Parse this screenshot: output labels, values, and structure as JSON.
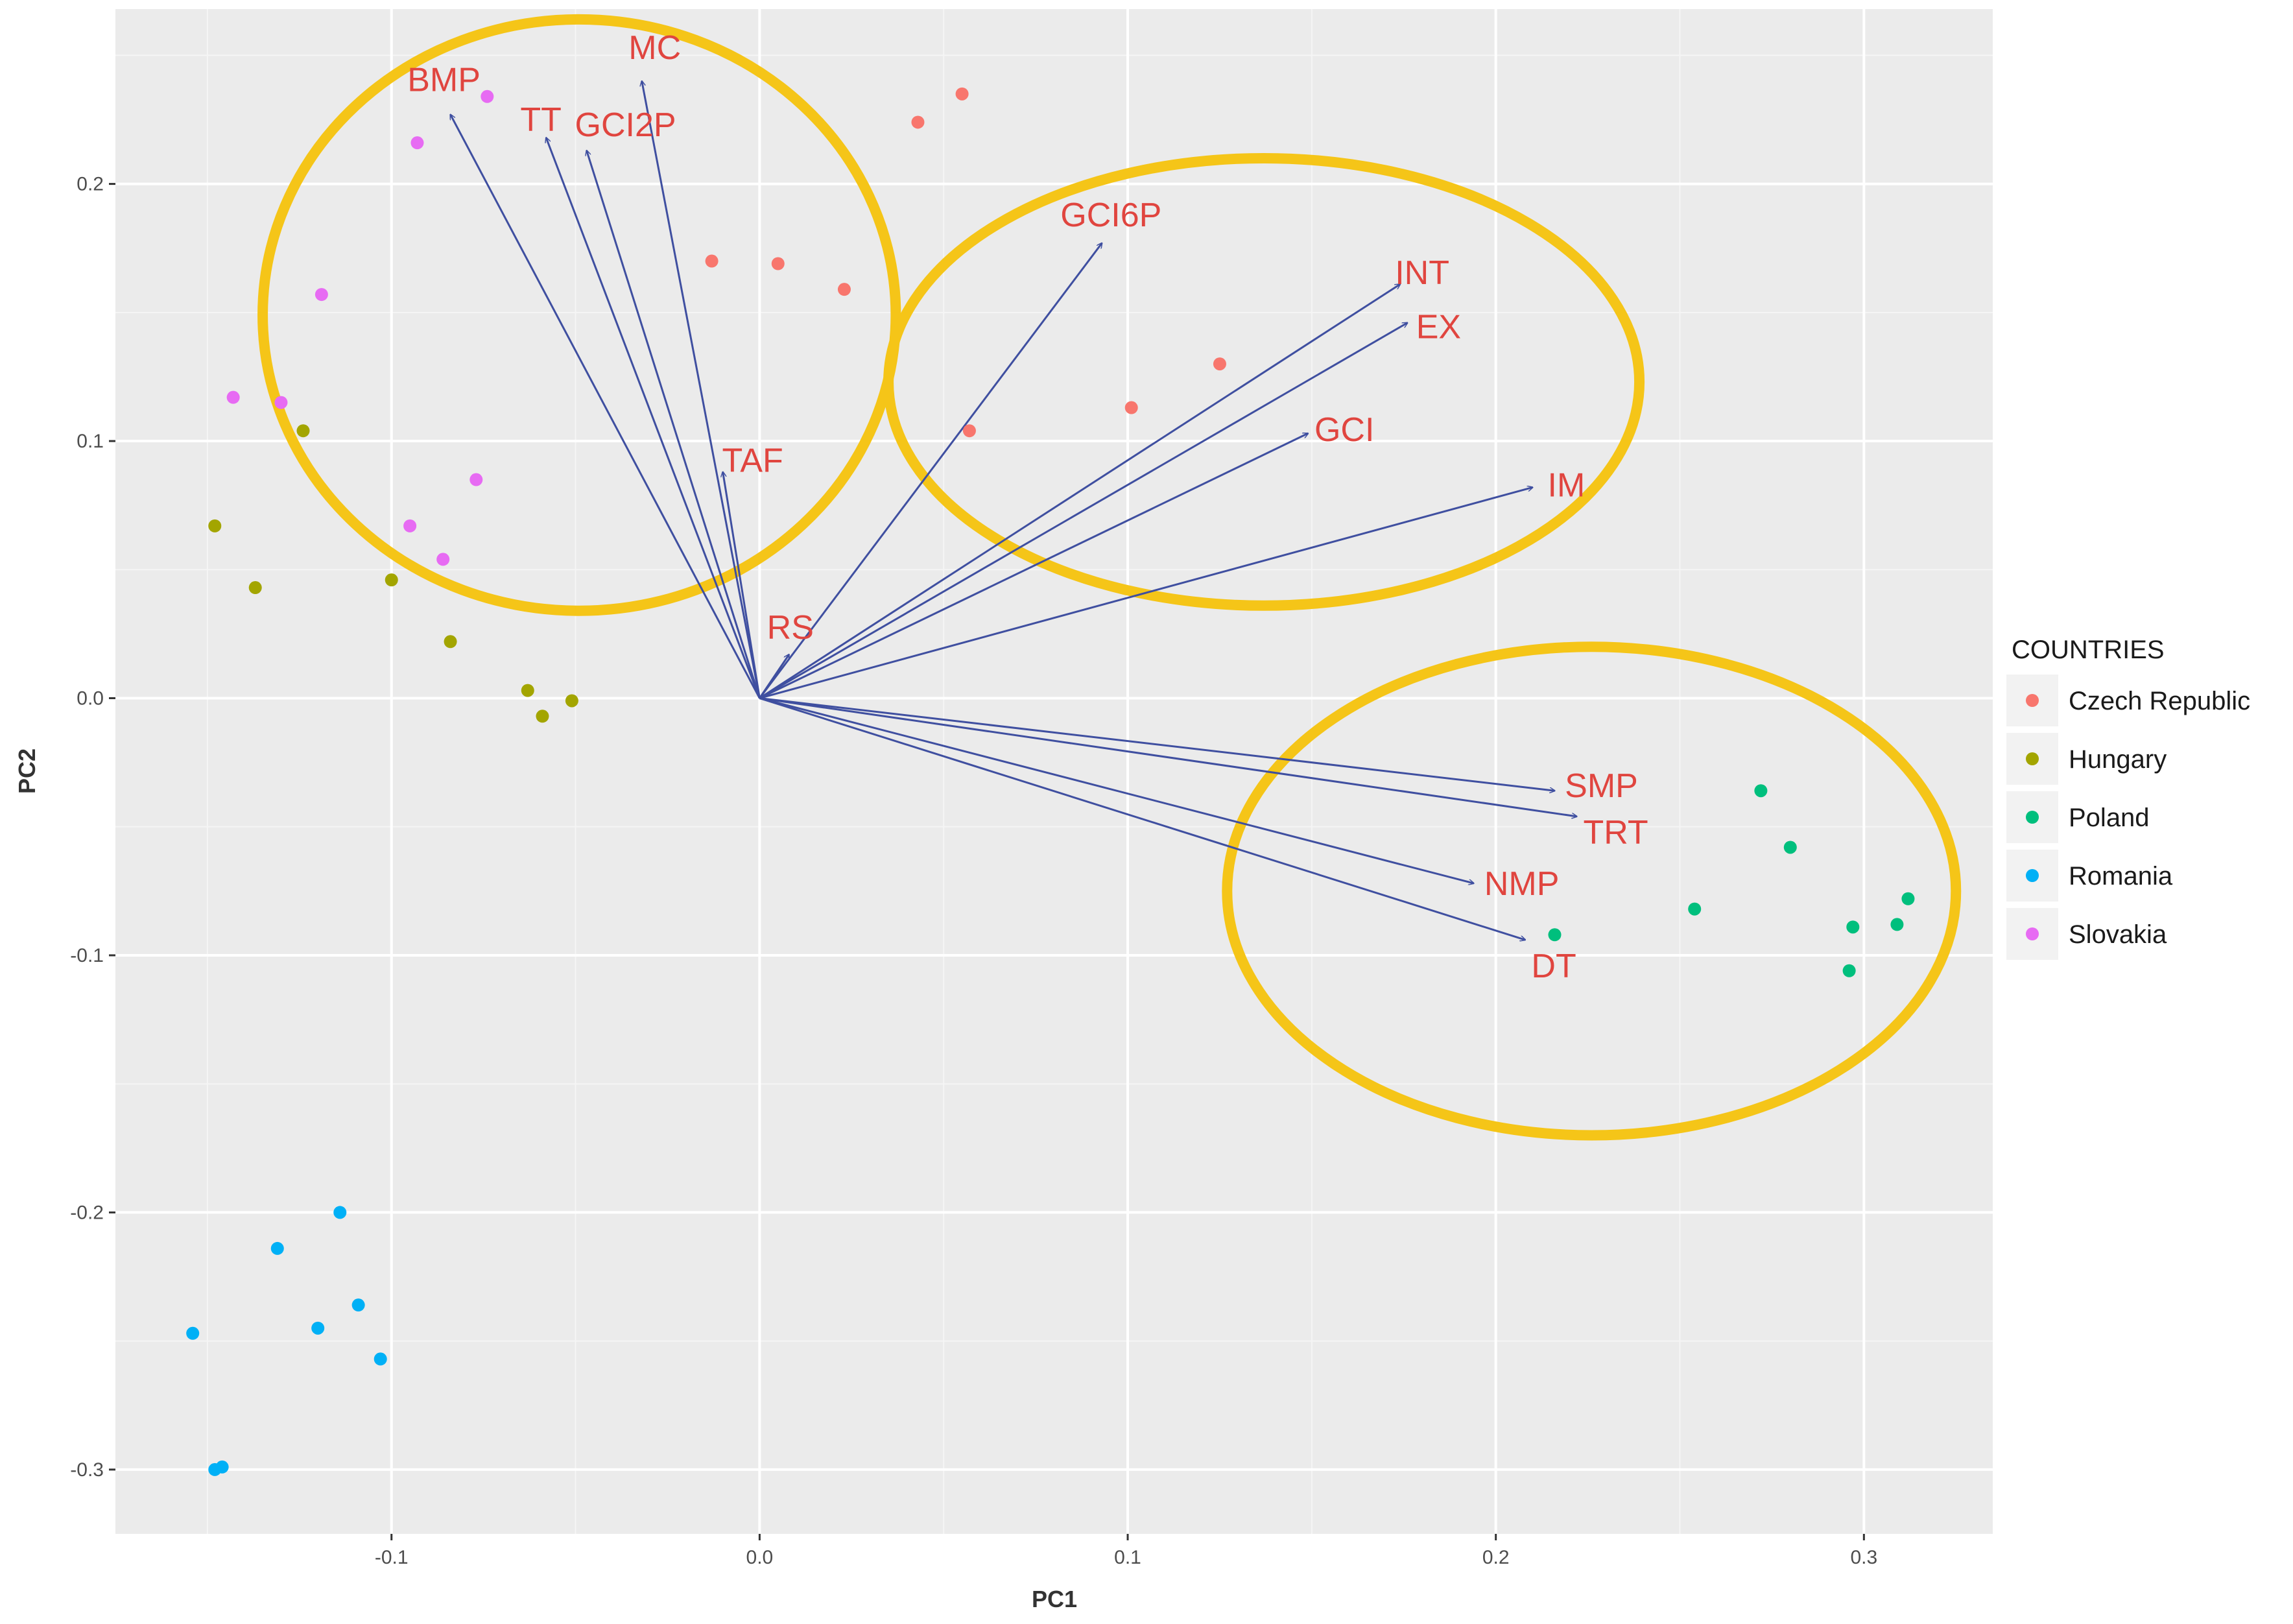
{
  "chart_data": {
    "type": "scatter",
    "title": "",
    "xlabel": "PC1",
    "ylabel": "PC2",
    "xlim": [
      -0.175,
      0.335
    ],
    "ylim": [
      -0.325,
      0.268
    ],
    "x_ticks": [
      -0.1,
      0.0,
      0.1,
      0.2,
      0.3
    ],
    "x_tick_labels": [
      "-0.1",
      "0.0",
      "0.1",
      "0.2",
      "0.3"
    ],
    "y_ticks": [
      -0.3,
      -0.2,
      -0.1,
      0.0,
      0.1,
      0.2
    ],
    "y_tick_labels": [
      "-0.3",
      "-0.2",
      "-0.1",
      "0.0",
      "0.1",
      "0.2"
    ],
    "grid": true,
    "legend": {
      "title": "COUNTRIES",
      "placement": "right"
    },
    "series": [
      {
        "name": "Czech Republic",
        "color": "#f8766d",
        "points": [
          [
            0.043,
            0.224
          ],
          [
            0.055,
            0.235
          ],
          [
            -0.013,
            0.17
          ],
          [
            0.005,
            0.169
          ],
          [
            0.023,
            0.159
          ],
          [
            0.125,
            0.13
          ],
          [
            0.101,
            0.113
          ],
          [
            0.057,
            0.104
          ]
        ]
      },
      {
        "name": "Hungary",
        "color": "#a3a500",
        "points": [
          [
            -0.148,
            0.067
          ],
          [
            -0.124,
            0.104
          ],
          [
            -0.137,
            0.043
          ],
          [
            -0.1,
            0.046
          ],
          [
            -0.084,
            0.022
          ],
          [
            -0.063,
            0.003
          ],
          [
            -0.059,
            -0.007
          ],
          [
            -0.051,
            -0.001
          ]
        ]
      },
      {
        "name": "Poland",
        "color": "#00bf7d",
        "points": [
          [
            0.272,
            -0.036
          ],
          [
            0.28,
            -0.058
          ],
          [
            0.254,
            -0.082
          ],
          [
            0.216,
            -0.092
          ],
          [
            0.297,
            -0.089
          ],
          [
            0.309,
            -0.088
          ],
          [
            0.312,
            -0.078
          ],
          [
            0.296,
            -0.106
          ]
        ]
      },
      {
        "name": "Romania",
        "color": "#00b0f6",
        "points": [
          [
            -0.114,
            -0.2
          ],
          [
            -0.131,
            -0.214
          ],
          [
            -0.109,
            -0.236
          ],
          [
            -0.12,
            -0.245
          ],
          [
            -0.103,
            -0.257
          ],
          [
            -0.154,
            -0.247
          ],
          [
            -0.148,
            -0.3
          ],
          [
            -0.146,
            -0.299
          ]
        ]
      },
      {
        "name": "Slovakia",
        "color": "#e76bf3",
        "points": [
          [
            -0.074,
            0.234
          ],
          [
            -0.093,
            0.216
          ],
          [
            -0.119,
            0.157
          ],
          [
            -0.143,
            0.117
          ],
          [
            -0.13,
            0.115
          ],
          [
            -0.077,
            0.085
          ],
          [
            -0.095,
            0.067
          ],
          [
            -0.086,
            0.054
          ]
        ]
      }
    ],
    "loadings": [
      {
        "label": "BMP",
        "x": -0.084,
        "y": 0.227
      },
      {
        "label": "TT",
        "x": -0.058,
        "y": 0.218
      },
      {
        "label": "GCI2P",
        "x": -0.047,
        "y": 0.213
      },
      {
        "label": "MC",
        "x": -0.032,
        "y": 0.24
      },
      {
        "label": "TAF",
        "x": -0.01,
        "y": 0.088
      },
      {
        "label": "RS",
        "x": 0.008,
        "y": 0.017
      },
      {
        "label": "GCI6P",
        "x": 0.093,
        "y": 0.177
      },
      {
        "label": "INT",
        "x": 0.174,
        "y": 0.161
      },
      {
        "label": "EX",
        "x": 0.176,
        "y": 0.146
      },
      {
        "label": "GCI",
        "x": 0.149,
        "y": 0.103
      },
      {
        "label": "IM",
        "x": 0.21,
        "y": 0.082
      },
      {
        "label": "SMP",
        "x": 0.216,
        "y": -0.036
      },
      {
        "label": "TRT",
        "x": 0.222,
        "y": -0.046
      },
      {
        "label": "NMP",
        "x": 0.194,
        "y": -0.072
      },
      {
        "label": "DT",
        "x": 0.208,
        "y": -0.094
      }
    ],
    "annotations": [
      {
        "type": "ellipse",
        "color": "#f5c518",
        "cx": -0.049,
        "cy": 0.149,
        "rx": 0.086,
        "ry": 0.115
      },
      {
        "type": "ellipse",
        "color": "#f5c518",
        "cx": 0.137,
        "cy": 0.123,
        "rx": 0.102,
        "ry": 0.087
      },
      {
        "type": "ellipse",
        "color": "#f5c518",
        "cx": 0.226,
        "cy": -0.075,
        "rx": 0.099,
        "ry": 0.095
      }
    ]
  }
}
